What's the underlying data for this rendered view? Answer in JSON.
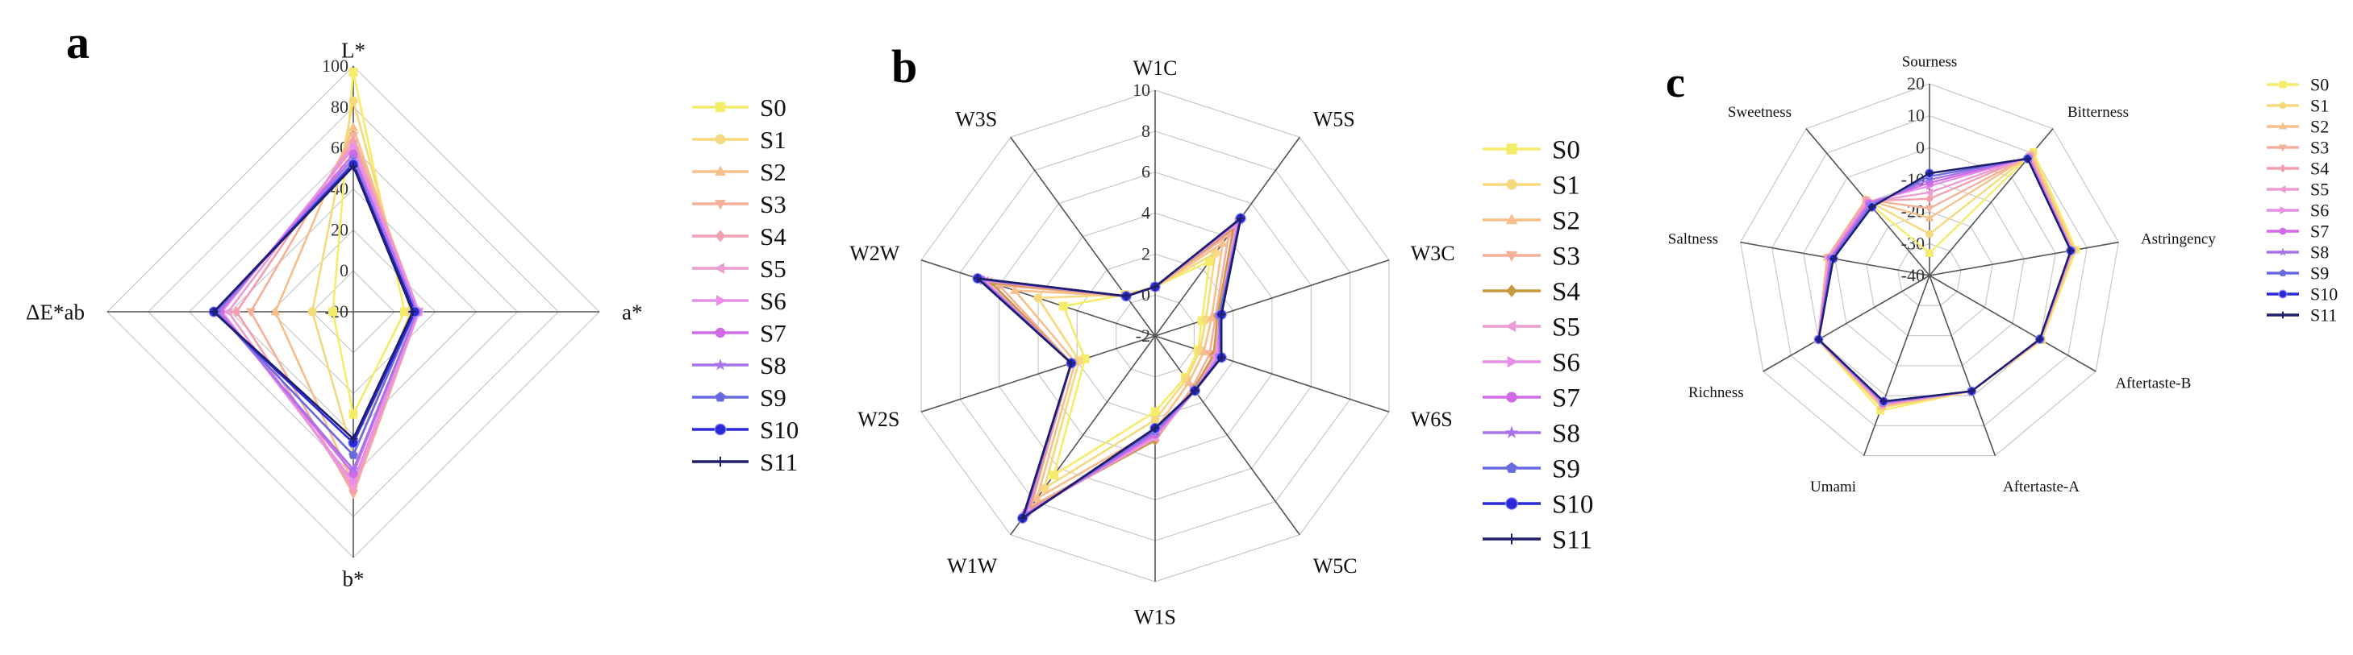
{
  "figure": {
    "panel_label_color": "#000000",
    "grid_color": "#c8c8c8",
    "axis_color": "#555555"
  },
  "chart_data": [
    {
      "type": "radar",
      "panel": "a",
      "axes": [
        "L*",
        "a*",
        "b*",
        "ΔE*ab"
      ],
      "range": [
        -20,
        100
      ],
      "tick_step": 20,
      "tick_labels": [
        "100",
        "80",
        "60",
        "40",
        "20",
        "0",
        "-20"
      ],
      "series": [
        {
          "name": "S0",
          "color": "#f5ec6a",
          "marker": "square",
          "values": [
            97,
            5,
            30,
            -10
          ]
        },
        {
          "name": "S1",
          "color": "#f5d97c",
          "marker": "circle",
          "values": [
            83,
            8,
            50,
            0
          ]
        },
        {
          "name": "S2",
          "color": "#f7c08a",
          "marker": "triangle-up",
          "values": [
            70,
            11,
            64,
            18
          ]
        },
        {
          "name": "S3",
          "color": "#f5b09a",
          "marker": "triangle-down",
          "values": [
            66,
            12,
            69,
            30
          ]
        },
        {
          "name": "S4",
          "color": "#f2a0b0",
          "marker": "diamond",
          "values": [
            63,
            12,
            67,
            37
          ]
        },
        {
          "name": "S5",
          "color": "#ec9bd4",
          "marker": "triangle-left",
          "values": [
            61,
            12,
            65,
            41
          ]
        },
        {
          "name": "S6",
          "color": "#e88ee8",
          "marker": "triangle-right",
          "values": [
            60,
            12,
            63,
            44
          ]
        },
        {
          "name": "S7",
          "color": "#d06ae6",
          "marker": "circle",
          "values": [
            57,
            11,
            59,
            45
          ]
        },
        {
          "name": "S8",
          "color": "#a872e8",
          "marker": "star",
          "values": [
            55,
            11,
            57,
            46
          ]
        },
        {
          "name": "S9",
          "color": "#6a6ae0",
          "marker": "pentagon",
          "values": [
            53,
            10,
            50,
            47
          ]
        },
        {
          "name": "S10",
          "color": "#2a2ad8",
          "marker": "ball",
          "values": [
            52,
            10,
            44,
            48
          ]
        },
        {
          "name": "S11",
          "color": "#1e1e6a",
          "marker": "plus",
          "values": [
            51,
            9,
            42,
            48
          ]
        }
      ]
    },
    {
      "type": "radar",
      "panel": "b",
      "axes": [
        "W1C",
        "W5S",
        "W3C",
        "W6S",
        "W5C",
        "W1S",
        "W1W",
        "W2S",
        "W2W",
        "W3S"
      ],
      "range": [
        -2,
        10
      ],
      "tick_step": 2,
      "tick_labels": [
        "10",
        "8",
        "6",
        "4",
        "2",
        "0",
        "-2"
      ],
      "series": [
        {
          "name": "S0",
          "color": "#f5ec6a",
          "marker": "square",
          "values": [
            0.4,
            2.5,
            0.4,
            0.2,
            0.5,
            1.7,
            6.4,
            1.6,
            2.7,
            0.5
          ]
        },
        {
          "name": "S1",
          "color": "#f5d97c",
          "marker": "circle",
          "values": [
            0.4,
            3.0,
            0.6,
            0.3,
            0.6,
            2.1,
            7.2,
            1.9,
            4.0,
            0.5
          ]
        },
        {
          "name": "S2",
          "color": "#f7c08a",
          "marker": "triangle-up",
          "values": [
            0.4,
            3.6,
            0.9,
            0.5,
            0.8,
            2.6,
            7.8,
            2.1,
            5.2,
            0.4
          ]
        },
        {
          "name": "S3",
          "color": "#f5b09a",
          "marker": "triangle-down",
          "values": [
            0.4,
            4.1,
            1.1,
            0.8,
            1.1,
            3.0,
            8.3,
            2.3,
            6.0,
            0.4
          ]
        },
        {
          "name": "S4",
          "color": "#c8983c",
          "marker": "diamond",
          "values": [
            0.4,
            4.5,
            1.2,
            1.0,
            1.2,
            3.1,
            8.5,
            2.3,
            6.4,
            0.4
          ]
        },
        {
          "name": "S5",
          "color": "#ec9bd4",
          "marker": "triangle-left",
          "values": [
            0.4,
            4.7,
            1.3,
            1.1,
            1.3,
            3.0,
            8.6,
            2.3,
            6.7,
            0.4
          ]
        },
        {
          "name": "S6",
          "color": "#e88ee8",
          "marker": "triangle-right",
          "values": [
            0.4,
            4.9,
            1.3,
            1.2,
            1.3,
            2.9,
            8.7,
            2.3,
            6.8,
            0.4
          ]
        },
        {
          "name": "S7",
          "color": "#d06ae6",
          "marker": "circle",
          "values": [
            0.4,
            5.0,
            1.3,
            1.3,
            1.3,
            2.8,
            8.8,
            2.3,
            6.9,
            0.4
          ]
        },
        {
          "name": "S8",
          "color": "#a872e8",
          "marker": "star",
          "values": [
            0.4,
            5.0,
            1.3,
            1.3,
            1.3,
            2.7,
            8.9,
            2.3,
            7.0,
            0.4
          ]
        },
        {
          "name": "S9",
          "color": "#6a6ae0",
          "marker": "pentagon",
          "values": [
            0.4,
            5.1,
            1.3,
            1.4,
            1.3,
            2.6,
            8.9,
            2.3,
            7.0,
            0.4
          ]
        },
        {
          "name": "S10",
          "color": "#2a2ad8",
          "marker": "ball",
          "values": [
            0.4,
            5.1,
            1.4,
            1.4,
            1.3,
            2.5,
            9.0,
            2.3,
            7.1,
            0.4
          ]
        },
        {
          "name": "S11",
          "color": "#1e1e6a",
          "marker": "plus",
          "values": [
            0.4,
            5.1,
            1.4,
            1.4,
            1.3,
            2.5,
            9.0,
            2.3,
            7.1,
            0.4
          ]
        }
      ]
    },
    {
      "type": "radar",
      "panel": "c",
      "axes": [
        "Sourness",
        "Bitterness",
        "Astringency",
        "Aftertaste-B",
        "Aftertaste-A",
        "Umami",
        "Richness",
        "Saltness",
        "Sweetness"
      ],
      "range": [
        -40,
        20
      ],
      "tick_step": 10,
      "tick_labels": [
        "20",
        "10",
        "0",
        "-10",
        "-20",
        "-30",
        "-40"
      ],
      "series": [
        {
          "name": "S0",
          "color": "#f5ec6a",
          "marker": "square",
          "values": [
            -33,
            10.5,
            6.5,
            0.5,
            -1.5,
            5.0,
            0.3,
            -8,
            -10
          ]
        },
        {
          "name": "S1",
          "color": "#f5d97c",
          "marker": "circle",
          "values": [
            -27,
            10.0,
            6.0,
            0.3,
            -1.5,
            4.0,
            0.3,
            -8,
            -9
          ]
        },
        {
          "name": "S2",
          "color": "#f7c08a",
          "marker": "triangle-up",
          "values": [
            -22,
            9.5,
            5.6,
            0.2,
            -1.5,
            3.5,
            0.3,
            -7.5,
            -9
          ]
        },
        {
          "name": "S3",
          "color": "#f5b09a",
          "marker": "triangle-down",
          "values": [
            -19,
            9.0,
            5.4,
            0.1,
            -1.5,
            3.2,
            0.2,
            -7.5,
            -9
          ]
        },
        {
          "name": "S4",
          "color": "#f2a0b0",
          "marker": "diamond",
          "values": [
            -16,
            8.8,
            5.3,
            0.0,
            -1.5,
            3.0,
            0.2,
            -8,
            -9.5
          ]
        },
        {
          "name": "S5",
          "color": "#ec9bd4",
          "marker": "triangle-left",
          "values": [
            -14,
            8.5,
            5.2,
            0.0,
            -1.5,
            2.8,
            0.2,
            -8,
            -10
          ]
        },
        {
          "name": "S6",
          "color": "#e88ee8",
          "marker": "triangle-right",
          "values": [
            -12,
            8.3,
            5.1,
            0.0,
            -1.5,
            2.6,
            0.1,
            -8.5,
            -10
          ]
        },
        {
          "name": "S7",
          "color": "#d06ae6",
          "marker": "circle",
          "values": [
            -11,
            8.2,
            5.0,
            -0.1,
            -1.5,
            2.5,
            0.1,
            -8.5,
            -10.5
          ]
        },
        {
          "name": "S8",
          "color": "#a872e8",
          "marker": "star",
          "values": [
            -10,
            8.0,
            5.0,
            -0.1,
            -1.5,
            2.3,
            0.1,
            -9,
            -11
          ]
        },
        {
          "name": "S9",
          "color": "#6a6ae0",
          "marker": "pentagon",
          "values": [
            -9,
            7.8,
            4.9,
            -0.2,
            -1.5,
            2.1,
            0.1,
            -9,
            -11.5
          ]
        },
        {
          "name": "S10",
          "color": "#2a2ad8",
          "marker": "ball",
          "values": [
            -8,
            7.7,
            4.8,
            -0.2,
            -1.5,
            1.9,
            0.0,
            -9.5,
            -12
          ]
        },
        {
          "name": "S11",
          "color": "#1e1e6a",
          "marker": "plus",
          "values": [
            -8,
            7.7,
            4.8,
            -0.2,
            -1.5,
            1.9,
            0.0,
            -9.5,
            -12
          ]
        }
      ]
    }
  ]
}
